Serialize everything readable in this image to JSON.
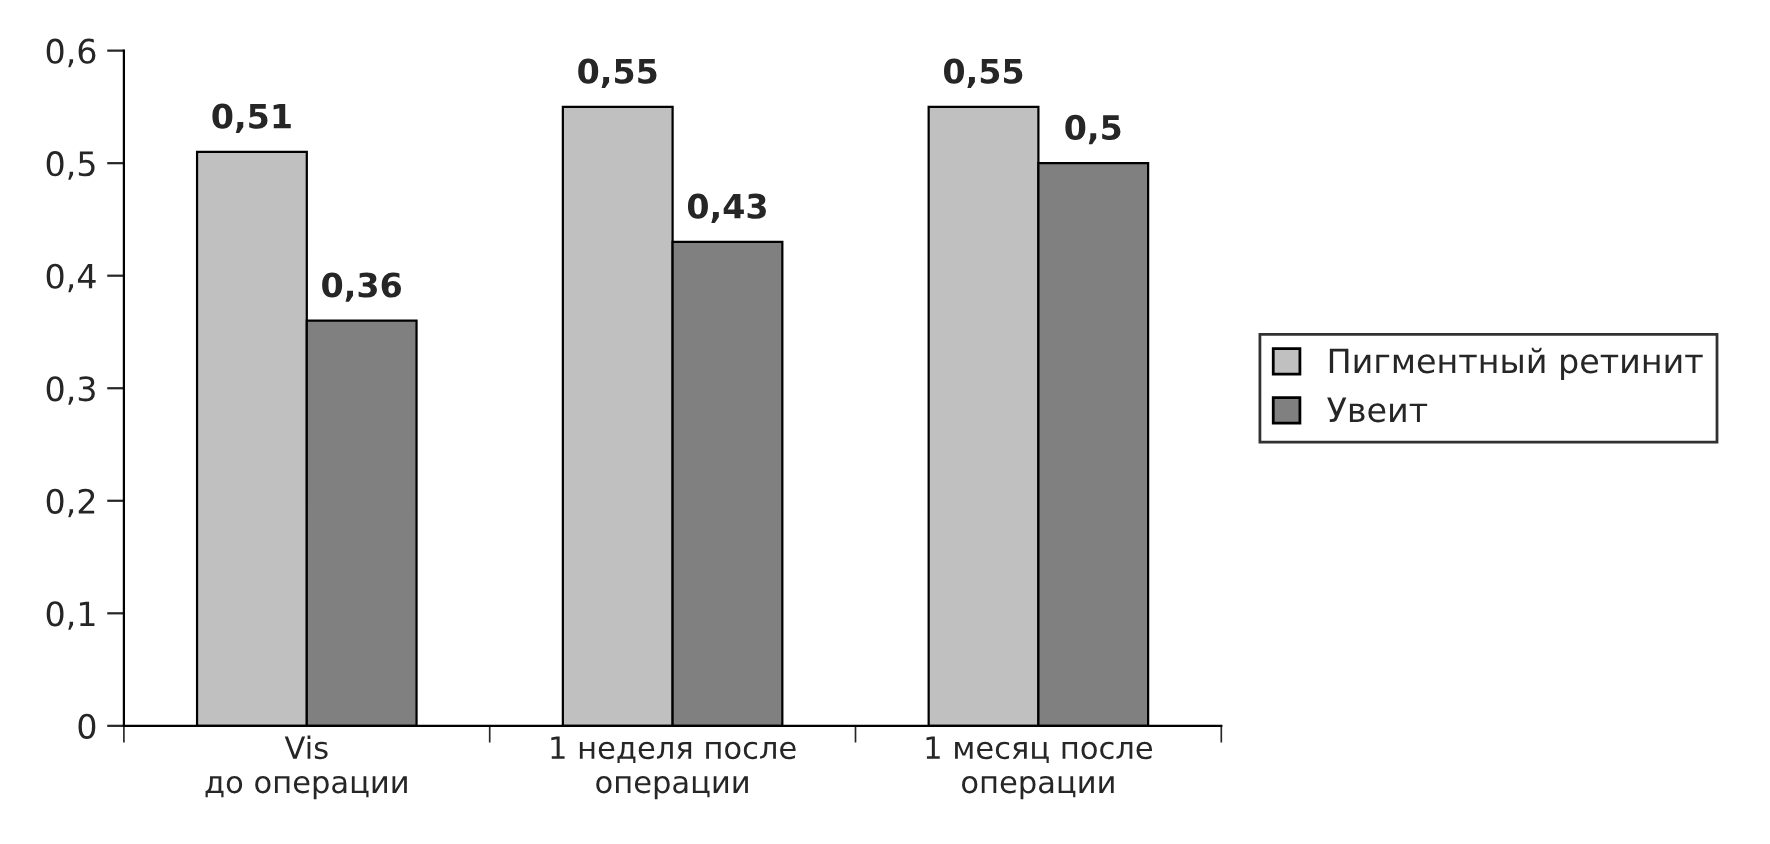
{
  "chart_data": {
    "type": "bar",
    "categories": [
      "Vis\nдо операции",
      "1 неделя после\nоперации",
      "1 месяц после\nоперации"
    ],
    "series": [
      {
        "name": "Пигментный ретинит",
        "color": "#c0c0c0",
        "values": [
          0.51,
          0.55,
          0.55
        ],
        "value_labels": [
          "0,51",
          "0,55",
          "0,55"
        ]
      },
      {
        "name": "Увеит",
        "color": "#808080",
        "values": [
          0.36,
          0.43,
          0.5
        ],
        "value_labels": [
          "0,36",
          "0,43",
          "0,5"
        ]
      }
    ],
    "ylim": [
      0,
      0.6
    ],
    "yticks": [
      0,
      {
        "value": 0.1,
        "label": "0,1"
      },
      {
        "value": 0.2,
        "label": "0,2"
      },
      {
        "value": 0.3,
        "label": "0,3"
      },
      {
        "value": 0.4,
        "label": "0,4"
      },
      {
        "value": 0.5,
        "label": "0,5"
      },
      {
        "value": 0.6,
        "label": "0,6"
      }
    ],
    "grid": false,
    "legend": "right"
  }
}
